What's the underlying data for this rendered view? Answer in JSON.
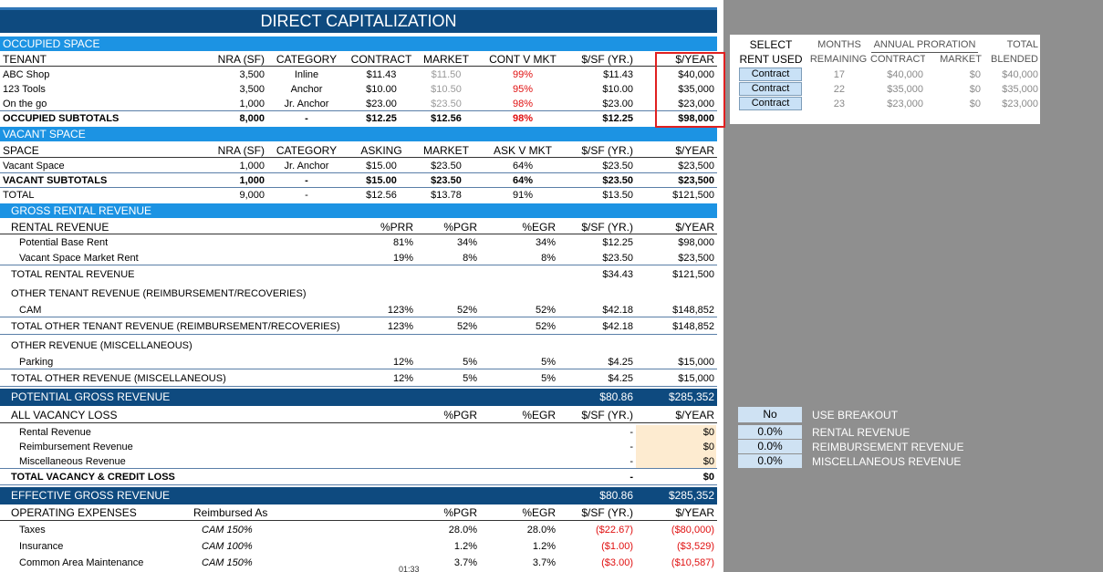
{
  "title": "DIRECT CAPITALIZATION",
  "rows": [
    [
      "OCCUPIED SPACE"
    ],
    [
      "TENANT",
      "NRA (SF)",
      "CATEGORY",
      "CONTRACT",
      "MARKET",
      "CONT V MKT",
      "$/SF (YR.)",
      "$/YEAR"
    ],
    [
      "ABC Shop",
      "3,500",
      "Inline",
      "$11.43",
      "$11.50",
      "99%",
      "$11.43",
      "$40,000"
    ],
    [
      "123 Tools",
      "3,500",
      "Anchor",
      "$10.00",
      "$10.50",
      "95%",
      "$10.00",
      "$35,000"
    ],
    [
      "On the go",
      "1,000",
      "Jr. Anchor",
      "$23.00",
      "$23.50",
      "98%",
      "$23.00",
      "$23,000"
    ],
    [
      "OCCUPIED SUBTOTALS",
      "8,000",
      "-",
      "$12.25",
      "$12.56",
      "98%",
      "$12.25",
      "$98,000"
    ],
    [
      "VACANT SPACE"
    ],
    [
      "SPACE",
      "NRA (SF)",
      "CATEGORY",
      "ASKING",
      "MARKET",
      "ASK V MKT",
      "$/SF (YR.)",
      "$/YEAR"
    ],
    [
      "Vacant Space",
      "1,000",
      "Jr. Anchor",
      "$15.00",
      "$23.50",
      "64%",
      "$23.50",
      "$23,500"
    ],
    [
      "VACANT SUBTOTALS",
      "1,000",
      "-",
      "$15.00",
      "$23.50",
      "64%",
      "$23.50",
      "$23,500"
    ],
    [
      "TOTAL",
      "9,000",
      "-",
      "$12.56",
      "$13.78",
      "91%",
      "$13.50",
      "$121,500"
    ],
    [
      "GROSS RENTAL REVENUE"
    ],
    [
      "RENTAL REVENUE",
      "%PRR",
      "%PGR",
      "%EGR",
      "$/SF (YR.)",
      "$/YEAR"
    ],
    [
      "Potential Base Rent",
      "81%",
      "34%",
      "34%",
      "$12.25",
      "$98,000"
    ],
    [
      "Vacant Space  Market Rent",
      "19%",
      "8%",
      "8%",
      "$23.50",
      "$23,500"
    ],
    [
      "TOTAL RENTAL REVENUE",
      null,
      null,
      null,
      "$34.43",
      "$121,500"
    ],
    [
      "OTHER TENANT REVENUE (REIMBURSEMENT/RECOVERIES)"
    ],
    [
      "CAM",
      "123%",
      "52%",
      "52%",
      "$42.18",
      "$148,852"
    ],
    [
      "TOTAL OTHER TENANT REVENUE (REIMBURSEMENT/RECOVERIES)",
      "123%",
      "52%",
      "52%",
      "$42.18",
      "$148,852"
    ],
    [
      "OTHER REVENUE (MISCELLANEOUS)"
    ],
    [
      "Parking",
      "12%",
      "5%",
      "5%",
      "$4.25",
      "$15,000"
    ],
    [
      "TOTAL OTHER REVENUE (MISCELLANEOUS)",
      "12%",
      "5%",
      "5%",
      "$4.25",
      "$15,000"
    ],
    [
      "POTENTIAL GROSS REVENUE",
      null,
      null,
      null,
      "$80.86",
      "$285,352"
    ],
    [
      "ALL VACANCY LOSS",
      null,
      "%PGR",
      "%EGR",
      "$/SF (YR.)",
      "$/YEAR"
    ],
    [
      "Rental Revenue",
      null,
      null,
      null,
      "-",
      "$0"
    ],
    [
      "Reimbursement Revenue",
      null,
      null,
      null,
      "-",
      "$0"
    ],
    [
      "Miscellaneous Revenue",
      null,
      null,
      null,
      "-",
      "$0"
    ],
    [
      "TOTAL VACANCY & CREDIT LOSS",
      null,
      null,
      null,
      "-",
      "$0"
    ],
    [
      "EFFECTIVE GROSS REVENUE",
      null,
      null,
      null,
      "$80.86",
      "$285,352"
    ],
    [
      "OPERATING EXPENSES",
      "Reimbursed As",
      "%PGR",
      "%EGR",
      "$/SF (YR.)",
      "$/YEAR"
    ],
    [
      "Taxes",
      "CAM  150%",
      "28.0%",
      "28.0%",
      "($22.67)",
      "($80,000)"
    ],
    [
      "Insurance",
      "CAM  100%",
      "1.2%",
      "1.2%",
      "($1.00)",
      "($3,529)"
    ],
    [
      "Common Area Maintenance",
      "CAM  150%",
      "3.7%",
      "3.7%",
      "($3.00)",
      "($10,587)"
    ]
  ],
  "rent_selection": {
    "headers_top": [
      "SELECT",
      "MONTHS",
      "ANNUAL PRORATION",
      "TOTAL"
    ],
    "headers_bottom": [
      "RENT USED",
      "REMAINING",
      "CONTRACT",
      "MARKET",
      "BLENDED"
    ],
    "rows": [
      [
        "Contract",
        "17",
        "$40,000",
        "$0",
        "$40,000"
      ],
      [
        "Contract",
        "22",
        "$35,000",
        "$0",
        "$35,000"
      ],
      [
        "Contract",
        "23",
        "$23,000",
        "$0",
        "$23,000"
      ]
    ]
  },
  "breakout": [
    [
      "No",
      "USE BREAKOUT"
    ],
    [
      "0.0%",
      "RENTAL REVENUE"
    ],
    [
      "0.0%",
      "REIMBURSEMENT REVENUE"
    ],
    [
      "0.0%",
      "MISCELLANEOUS REVENUE"
    ]
  ],
  "footer": "01:33"
}
